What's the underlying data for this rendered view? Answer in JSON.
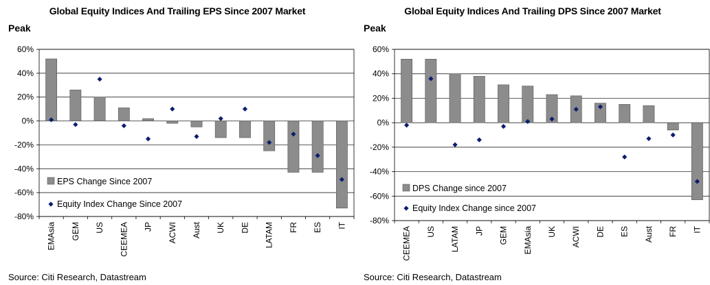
{
  "chart_data": [
    {
      "type": "bar",
      "title": "Global Equity Indices And Trailing EPS Since 2007 Market",
      "title_line2": "Peak",
      "categories": [
        "EMAsia",
        "GEM",
        "US",
        "CEEMEA",
        "JP",
        "ACWI",
        "Aust",
        "UK",
        "DE",
        "LATAM",
        "FR",
        "ES",
        "IT"
      ],
      "series": [
        {
          "name": "EPS Change Since 2007",
          "kind": "bar",
          "values": [
            52,
            26,
            20,
            11,
            2,
            -2,
            -5,
            -14,
            -14,
            -25,
            -43,
            -43,
            -73
          ]
        },
        {
          "name": "Equity Index Change Since 2007",
          "kind": "marker",
          "values": [
            1,
            -3,
            35,
            -4,
            -15,
            10,
            -13,
            2,
            10,
            -18,
            -11,
            -29,
            -49
          ]
        }
      ],
      "ylim": [
        -80,
        60
      ],
      "yticks": [
        "60%",
        "40%",
        "20%",
        "0%",
        "-20%",
        "-40%",
        "-60%",
        "-80%"
      ],
      "ytick_values": [
        60,
        40,
        20,
        0,
        -20,
        -40,
        -60,
        -80
      ],
      "grid": true,
      "legend": "bottom-left",
      "source": "Source: Citi Research, Datastream"
    },
    {
      "type": "bar",
      "title": "Global Equity Indices And Trailing DPS Since 2007 Market",
      "title_line2": "Peak",
      "categories": [
        "CEEMEA",
        "US",
        "LATAM",
        "JP",
        "GEM",
        "EMAsia",
        "UK",
        "ACWI",
        "DE",
        "ES",
        "Aust",
        "FR",
        "IT"
      ],
      "series": [
        {
          "name": "DPS Change since 2007",
          "kind": "bar",
          "values": [
            52,
            52,
            40,
            38,
            31,
            30,
            23,
            22,
            16,
            15,
            14,
            -6,
            -63
          ]
        },
        {
          "name": "Equity Index Change since 2007",
          "kind": "marker",
          "values": [
            -2,
            36,
            -18,
            -14,
            -3,
            1,
            3,
            11,
            13,
            -28,
            -13,
            -10,
            -48
          ]
        }
      ],
      "ylim": [
        -80,
        60
      ],
      "yticks": [
        "60%",
        "40%",
        "20%",
        "0%",
        "-20%",
        "-40%",
        "-60%",
        "-80%"
      ],
      "ytick_values": [
        60,
        40,
        20,
        0,
        -20,
        -40,
        -60,
        -80
      ],
      "grid": true,
      "legend": "bottom-left",
      "source": "Source: Citi Research, Datastream"
    }
  ],
  "colors": {
    "bar_fill": "#8c8c8c",
    "bar_stroke": "#555555",
    "marker": "#0b1f6e",
    "grid": "#000000"
  }
}
